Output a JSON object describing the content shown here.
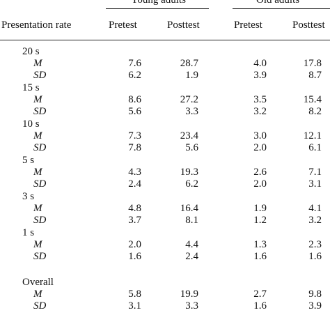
{
  "table": {
    "group_headers": [
      "Young adults",
      "Old adults"
    ],
    "row_header": "Presentation rate",
    "columns": [
      "Pretest",
      "Posttest",
      "Pretest",
      "Posttest"
    ],
    "sections": [
      {
        "label": "20 s",
        "rows": [
          {
            "stat": "M",
            "values": [
              "7.6",
              "28.7",
              "4.0",
              "17.8"
            ]
          },
          {
            "stat": "SD",
            "values": [
              "6.2",
              "1.9",
              "3.9",
              "8.7"
            ]
          }
        ]
      },
      {
        "label": "15 s",
        "rows": [
          {
            "stat": "M",
            "values": [
              "8.6",
              "27.2",
              "3.5",
              "15.4"
            ]
          },
          {
            "stat": "SD",
            "values": [
              "5.6",
              "3.3",
              "3.2",
              "8.2"
            ]
          }
        ]
      },
      {
        "label": "10 s",
        "rows": [
          {
            "stat": "M",
            "values": [
              "7.3",
              "23.4",
              "3.0",
              "12.1"
            ]
          },
          {
            "stat": "SD",
            "values": [
              "7.8",
              "5.6",
              "2.0",
              "6.1"
            ]
          }
        ]
      },
      {
        "label": "5 s",
        "rows": [
          {
            "stat": "M",
            "values": [
              "4.3",
              "19.3",
              "2.6",
              "7.1"
            ]
          },
          {
            "stat": "SD",
            "values": [
              "2.4",
              "6.2",
              "2.0",
              "3.1"
            ]
          }
        ]
      },
      {
        "label": "3 s",
        "rows": [
          {
            "stat": "M",
            "values": [
              "4.8",
              "16.4",
              "1.9",
              "4.1"
            ]
          },
          {
            "stat": "SD",
            "values": [
              "3.7",
              "8.1",
              "1.2",
              "3.2"
            ]
          }
        ]
      },
      {
        "label": "1 s",
        "rows": [
          {
            "stat": "M",
            "values": [
              "2.0",
              "4.4",
              "1.3",
              "2.3"
            ]
          },
          {
            "stat": "SD",
            "values": [
              "1.6",
              "2.4",
              "1.6",
              "1.6"
            ]
          }
        ]
      },
      {
        "label": "Overall",
        "rows": [
          {
            "stat": "M",
            "values": [
              "5.8",
              "19.9",
              "2.7",
              "9.8"
            ]
          },
          {
            "stat": "SD",
            "values": [
              "3.1",
              "3.3",
              "1.6",
              "3.9"
            ]
          }
        ]
      }
    ]
  }
}
